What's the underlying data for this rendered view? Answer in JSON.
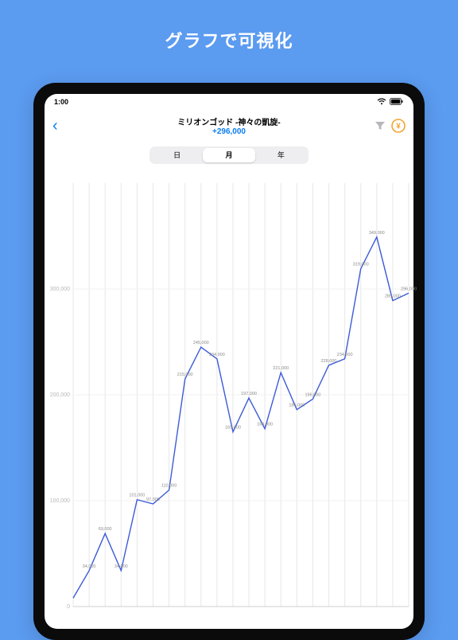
{
  "hero": {
    "title": "グラフで可視化"
  },
  "statusbar": {
    "time": "1:00"
  },
  "nav": {
    "title": "ミリオンゴッド -神々の凱旋-",
    "subtitle": "+296,000"
  },
  "segmented": {
    "options": [
      "日",
      "月",
      "年"
    ],
    "selected_index": 1
  },
  "chart": {
    "type": "line",
    "line_color": "#3c5bd6",
    "grid_color": "#e7e7e7",
    "hgrid_color": "#f0f0f0",
    "baseline_color": "#cfcfcf",
    "bg_color": "#ffffff",
    "ytick_label_fontsize": 7,
    "point_label_fontsize": 5.5,
    "label_color": "#8a8a8a",
    "ylim": [
      0,
      400000
    ],
    "yticks": [
      0,
      100000,
      200000,
      300000
    ],
    "ytick_labels": [
      "0",
      "100,000",
      "200,000",
      "300,000"
    ],
    "n_vgrid": 21,
    "values": [
      8000,
      34000,
      69000,
      34000,
      101000,
      97000,
      110000,
      215000,
      245000,
      234000,
      165000,
      197000,
      168000,
      221000,
      186000,
      196000,
      228000,
      234000,
      319000,
      349000,
      289000,
      296000
    ],
    "value_labels": [
      "",
      "34,000",
      "69,000",
      "34,000",
      "101,000",
      "97,000",
      "110,000",
      "215,000",
      "245,000",
      "234,000",
      "165,000",
      "197,000",
      "168,000",
      "221,000",
      "186,000",
      "196,000",
      "228,000",
      "234,000",
      "319,000",
      "349,000",
      "289,000",
      "296,000"
    ]
  }
}
